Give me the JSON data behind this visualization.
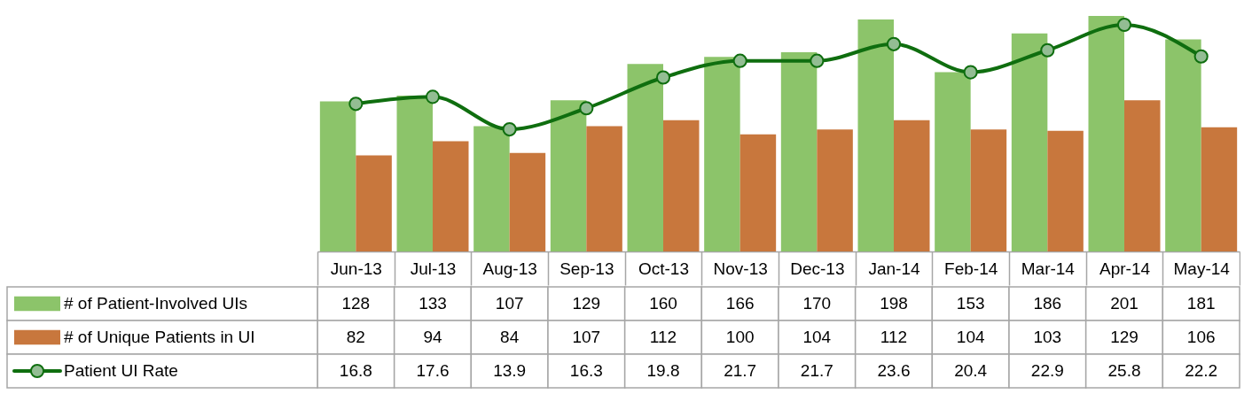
{
  "chart_data": {
    "type": "bar",
    "categories": [
      "Jun-13",
      "Jul-13",
      "Aug-13",
      "Sep-13",
      "Oct-13",
      "Nov-13",
      "Dec-13",
      "Jan-14",
      "Feb-14",
      "Mar-14",
      "Apr-14",
      "May-14"
    ],
    "series": [
      {
        "name": "# of Patient-Involved UIs",
        "color": "#8cc46a",
        "values": [
          128,
          133,
          107,
          129,
          160,
          166,
          170,
          198,
          153,
          186,
          201,
          181
        ]
      },
      {
        "name": "# of Unique Patients in UI",
        "color": "#c8773d",
        "values": [
          82,
          94,
          84,
          107,
          112,
          100,
          104,
          112,
          104,
          103,
          129,
          106
        ]
      },
      {
        "name": "Patient UI Rate",
        "type": "line",
        "axis": "y2",
        "marker": "circle",
        "line_style": "solid",
        "color": "#0f6e0f",
        "values": [
          16.8,
          17.6,
          13.9,
          16.3,
          19.8,
          21.7,
          21.7,
          23.6,
          20.4,
          22.9,
          25.8,
          22.2
        ]
      }
    ],
    "data_labels": true,
    "legend": "bottom left",
    "tick_labels": "x"
  }
}
